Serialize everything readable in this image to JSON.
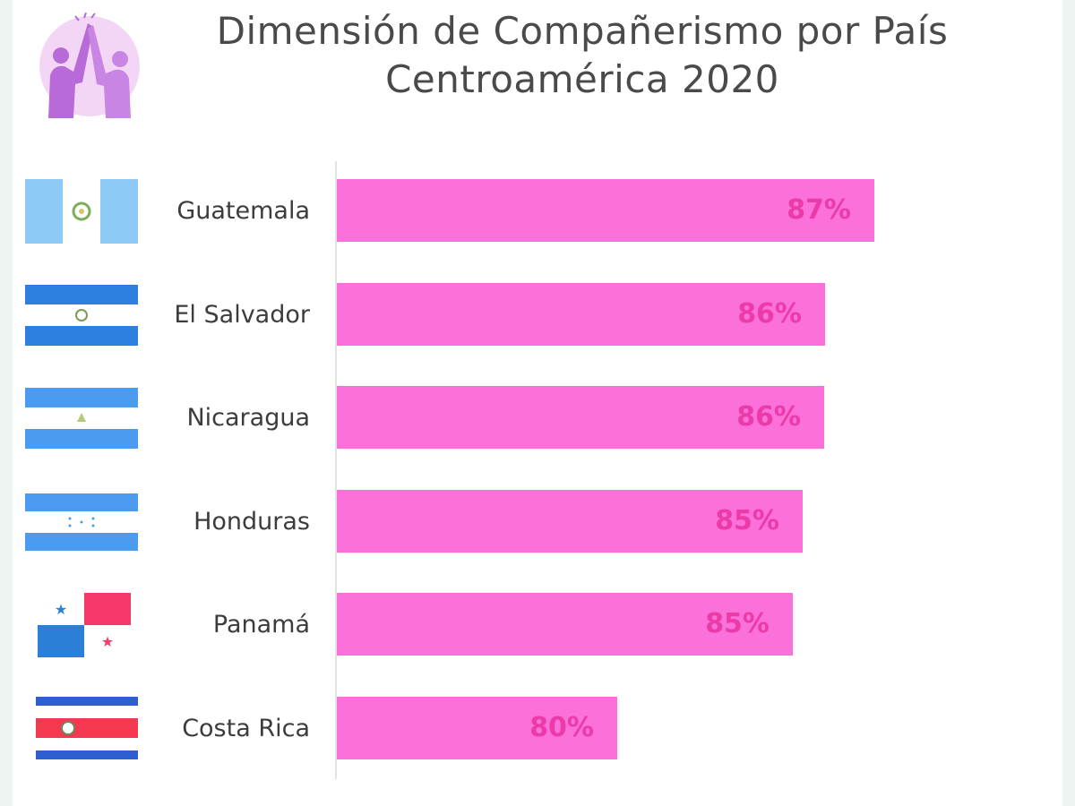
{
  "title": {
    "line1": "Dimensión de Compañerismo por País",
    "line2": "Centroamérica 2020"
  },
  "icons": {
    "logo": "high-five-people-icon"
  },
  "colors": {
    "bar": "#fb70d9",
    "bar_label": "#ec3aa8",
    "logo_circle": "#f3d6f5",
    "logo_figures": "#b86ad8"
  },
  "chart_data": {
    "type": "bar",
    "orientation": "horizontal",
    "title": "Dimensión de Compañerismo por País Centroamérica 2020",
    "categories": [
      "Guatemala",
      "El Salvador",
      "Nicaragua",
      "Honduras",
      "Panamá",
      "Costa Rica"
    ],
    "values": [
      87,
      86,
      86,
      85,
      85,
      80
    ],
    "value_labels": [
      "87%",
      "86%",
      "86%",
      "85%",
      "85%",
      "80%"
    ],
    "flags": [
      "guatemala-flag-icon",
      "el-salvador-flag-icon",
      "nicaragua-flag-icon",
      "honduras-flag-icon",
      "panama-flag-icon",
      "costa-rica-flag-icon"
    ],
    "grid": false,
    "legend": "none"
  }
}
